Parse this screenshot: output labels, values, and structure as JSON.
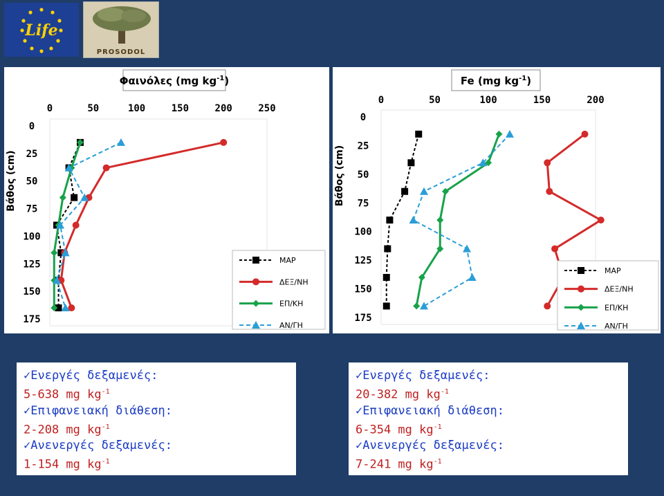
{
  "logos": {
    "life": "Life",
    "prosodol": "PROSODOL"
  },
  "charts": [
    {
      "chart_data": {
        "type": "line",
        "title": "Φαινόλες (mg kg-1)",
        "title_main": "Φαινόλες (mg kg",
        "title_exp": "-1",
        "ylabel": "Βάθος (cm)",
        "xlim": [
          0,
          250
        ],
        "ylim": [
          0,
          175
        ],
        "x_ticks": [
          0,
          50,
          100,
          150,
          200,
          250
        ],
        "y_ticks": [
          0,
          25,
          50,
          75,
          100,
          125,
          150,
          175
        ],
        "legend_position": "bottom-right",
        "series": [
          {
            "name": "MAP",
            "color": "#000000",
            "marker": "square",
            "dash": "4,3",
            "points": [
              [
                35,
                15
              ],
              [
                22,
                38
              ],
              [
                28,
                65
              ],
              [
                8,
                90
              ],
              [
                13,
                115
              ],
              [
                10,
                140
              ],
              [
                10,
                165
              ]
            ]
          },
          {
            "name": "ΔΕΞ/ΝΗ",
            "color": "#d42a2a",
            "marker": "circle",
            "dash": "",
            "points": [
              [
                200,
                15
              ],
              [
                65,
                38
              ],
              [
                45,
                65
              ],
              [
                30,
                90
              ],
              [
                17,
                115
              ],
              [
                13,
                140
              ],
              [
                25,
                165
              ]
            ]
          },
          {
            "name": "ΕΠ/ΚΗ",
            "color": "#18a24a",
            "marker": "diamond",
            "dash": "",
            "points": [
              [
                35,
                15
              ],
              [
                25,
                38
              ],
              [
                15,
                65
              ],
              [
                10,
                90
              ],
              [
                5,
                115
              ],
              [
                5,
                140
              ],
              [
                5,
                165
              ]
            ]
          },
          {
            "name": "ΑΝ/ΓΗ",
            "color": "#2a9ed8",
            "marker": "triangle",
            "dash": "6,4",
            "points": [
              [
                82,
                15
              ],
              [
                22,
                38
              ],
              [
                40,
                65
              ],
              [
                12,
                90
              ],
              [
                18,
                115
              ],
              [
                8,
                140
              ],
              [
                18,
                165
              ]
            ]
          }
        ]
      }
    },
    {
      "chart_data": {
        "type": "line",
        "title": "Fe (mg kg-1)",
        "title_main": "Fe (mg kg",
        "title_exp": "-1",
        "ylabel": "Βάθος (cm)",
        "xlim": [
          0,
          200
        ],
        "ylim": [
          0,
          175
        ],
        "x_ticks": [
          0,
          50,
          100,
          150,
          200
        ],
        "y_ticks": [
          0,
          25,
          50,
          75,
          100,
          125,
          150,
          175
        ],
        "legend_position": "bottom-right",
        "series": [
          {
            "name": "MAP",
            "color": "#000000",
            "marker": "square",
            "dash": "4,3",
            "points": [
              [
                35,
                15
              ],
              [
                28,
                40
              ],
              [
                22,
                65
              ],
              [
                8,
                90
              ],
              [
                6,
                115
              ],
              [
                5,
                140
              ],
              [
                5,
                165
              ]
            ]
          },
          {
            "name": "ΔΕΞ/ΝΗ",
            "color": "#d42a2a",
            "marker": "circle",
            "dash": "",
            "points": [
              [
                190,
                15
              ],
              [
                155,
                40
              ],
              [
                157,
                65
              ],
              [
                205,
                90
              ],
              [
                162,
                115
              ],
              [
                170,
                140
              ],
              [
                155,
                165
              ]
            ]
          },
          {
            "name": "ΕΠ/ΚΗ",
            "color": "#18a24a",
            "marker": "diamond",
            "dash": "",
            "points": [
              [
                110,
                15
              ],
              [
                100,
                40
              ],
              [
                60,
                65
              ],
              [
                55,
                90
              ],
              [
                55,
                115
              ],
              [
                38,
                140
              ],
              [
                33,
                165
              ]
            ]
          },
          {
            "name": "ΑΝ/ΓΗ",
            "color": "#2a9ed8",
            "marker": "triangle",
            "dash": "6,4",
            "points": [
              [
                120,
                15
              ],
              [
                95,
                40
              ],
              [
                40,
                65
              ],
              [
                30,
                90
              ],
              [
                80,
                115
              ],
              [
                85,
                140
              ],
              [
                40,
                165
              ]
            ]
          }
        ]
      }
    }
  ],
  "summaries": [
    {
      "items": [
        {
          "heading": "Ενεργές δεξαμενές:",
          "value": "5-638 mg kg",
          "exp": "-1"
        },
        {
          "heading": "Επιφανειακή διάθεση:",
          "value": "2-208 mg kg",
          "exp": "-1"
        },
        {
          "heading": "Ανενεργές δεξαμενές:",
          "value": "1-154 mg kg",
          "exp": "-1"
        }
      ]
    },
    {
      "items": [
        {
          "heading": "Ενεργές δεξαμενές:",
          "value": "20-382 mg kg",
          "exp": "-1"
        },
        {
          "heading": "Επιφανειακή διάθεση:",
          "value": "6-354 mg kg",
          "exp": "-1"
        },
        {
          "heading": "Ανενεργές δεξαμενές:",
          "value": "7-241 mg kg",
          "exp": "-1"
        }
      ]
    }
  ],
  "colors": {
    "background": "#1f3d66",
    "accent_text": "#1b3cc4",
    "value_text": "#c02020"
  }
}
